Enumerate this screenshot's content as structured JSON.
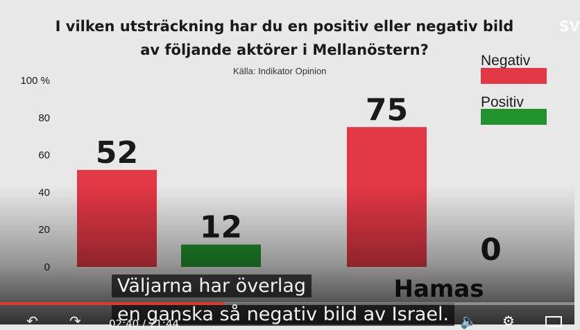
{
  "chart_data": {
    "type": "bar",
    "title_line1": "I vilken utsträckning har du en positiv eller negativ bild",
    "title_line2": "av följande aktörer i Mellanöstern?",
    "subtitle": "Källa: Indikator Opinion",
    "categories": [
      "",
      "Hamas"
    ],
    "series": [
      {
        "name": "Negativ",
        "values": [
          52,
          75
        ],
        "labels": [
          "52",
          "75"
        ],
        "color": "#e23744"
      },
      {
        "name": "Positiv",
        "values": [
          12,
          0
        ],
        "labels": [
          "12",
          "0"
        ],
        "color": "#22922e"
      }
    ],
    "yticks": [
      "100 %",
      "80",
      "60",
      "40",
      "20",
      "0"
    ],
    "ylim": [
      0,
      100
    ],
    "grid": false,
    "legend_position": "top-right"
  },
  "channel_logo": "SV",
  "subtitles": {
    "line1": "Väljarna har överlag",
    "line2": "en ganska så negativ bild av Israel."
  },
  "player": {
    "time": "02:40 / 21:44",
    "progress": 0.39,
    "accent": "#e03a2e"
  }
}
